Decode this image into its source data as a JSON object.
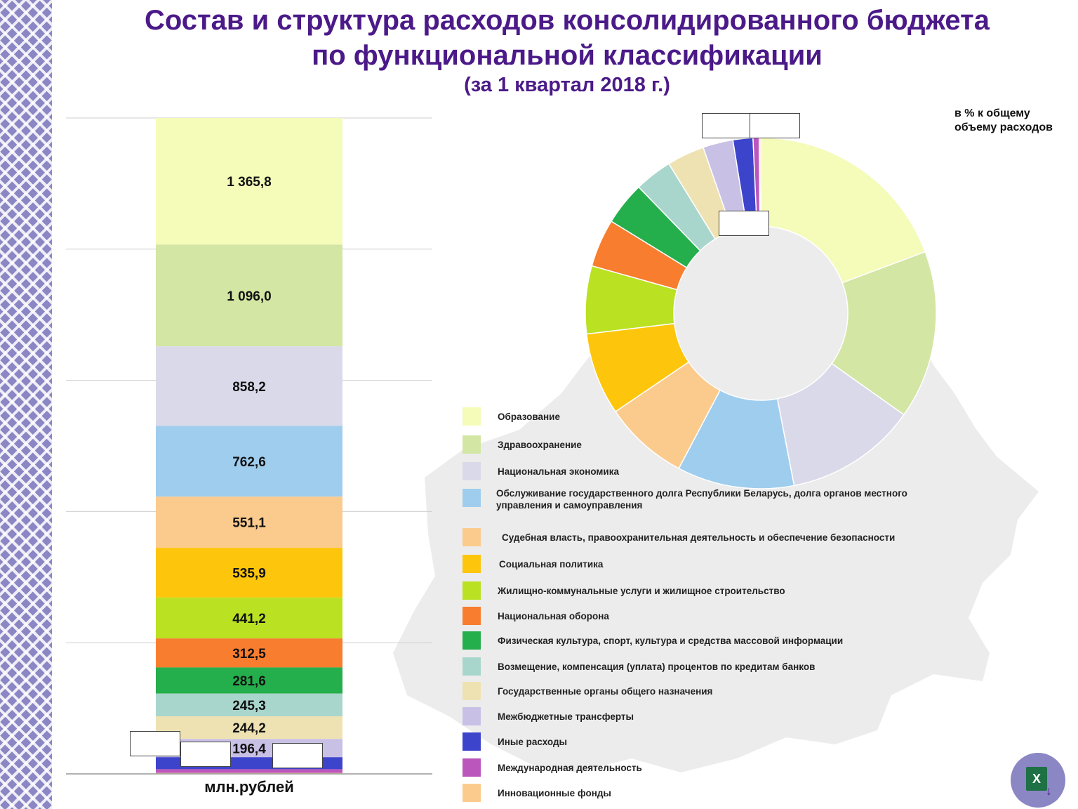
{
  "title": {
    "line1": "Состав и структура расходов консолидированного бюджета",
    "line2": "по функциональной классификации",
    "line3": "(за 1 квартал 2018 г.)"
  },
  "bar_unit": "млн.рублей",
  "donut_note": "в % к общему объему расходов",
  "excel_button": {
    "icon": "excel-download-icon",
    "label": "X"
  },
  "chart_data": [
    {
      "type": "bar",
      "stacked": true,
      "xlabel": "млн.рублей",
      "categories": [
        "Образование",
        "Здравоохранение",
        "Национальная экономика",
        "Обслуживание государственного долга Республики Беларусь, долга органов местного управления и самоуправления",
        "Судебная власть, правоохранительная деятельность и обеспечение безопасности",
        "Социальная политика",
        "Жилищно-коммунальные услуги и жилищное строительство",
        "Национальная оборона",
        "Физическая культура, спорт, культура и средства массовой информации",
        "Возмещение, компенсация (уплата) процентов по кредитам банков",
        "Государственные органы общего назначения",
        "Межбюджетные трансферты",
        "Иные расходы",
        "Международная деятельность",
        "Инновационные фонды"
      ],
      "values": [
        1365.8,
        1096.0,
        858.2,
        762.6,
        551.1,
        535.9,
        441.2,
        312.5,
        281.6,
        245.3,
        244.2,
        196.4,
        130,
        40,
        10
      ],
      "labels": [
        "1 365,8",
        "1 096,0",
        "858,2",
        "762,6",
        "551,1",
        "535,9",
        "441,2",
        "312,5",
        "281,6",
        "245,3",
        "244,2",
        "196,4",
        "",
        "",
        ""
      ],
      "colors": [
        "#f5fbb8",
        "#d3e6a4",
        "#dad9ea",
        "#9fcdee",
        "#fbcb8e",
        "#fdc60c",
        "#bae122",
        "#f87d2e",
        "#25ae4c",
        "#a9d6cc",
        "#efe2b2",
        "#c9c0e6",
        "#3d44cc",
        "#bb56bd",
        "#fbcb8e"
      ],
      "grid": true
    },
    {
      "type": "pie",
      "donut": true,
      "note": "в % к общему объему расходов",
      "categories": [
        "Образование",
        "Здравоохранение",
        "Национальная экономика",
        "Обслуживание государственного долга Республики Беларусь, долга органов местного управления и самоуправления",
        "Судебная власть, правоохранительная деятельность и обеспечение безопасности",
        "Социальная политика",
        "Жилищно-коммунальные услуги и жилищное строительство",
        "Национальная оборона",
        "Физическая культура, спорт, культура и средства массовой информации",
        "Возмещение, компенсация (уплата) процентов по кредитам банков",
        "Государственные органы общего назначения",
        "Межбюджетные трансферты",
        "Иные расходы",
        "Международная деятельность",
        "Инновационные фонды"
      ],
      "values": [
        1365.8,
        1096.0,
        858.2,
        762.6,
        551.1,
        535.9,
        441.2,
        312.5,
        281.6,
        245.3,
        244.2,
        196.4,
        130,
        40,
        10
      ],
      "colors": [
        "#f5fbb8",
        "#d3e6a4",
        "#dad9ea",
        "#9fcdee",
        "#fbcb8e",
        "#fdc60c",
        "#bae122",
        "#f87d2e",
        "#25ae4c",
        "#a9d6cc",
        "#efe2b2",
        "#c9c0e6",
        "#3d44cc",
        "#bb56bd",
        "#fbcb8e"
      ],
      "legend": "left"
    }
  ]
}
